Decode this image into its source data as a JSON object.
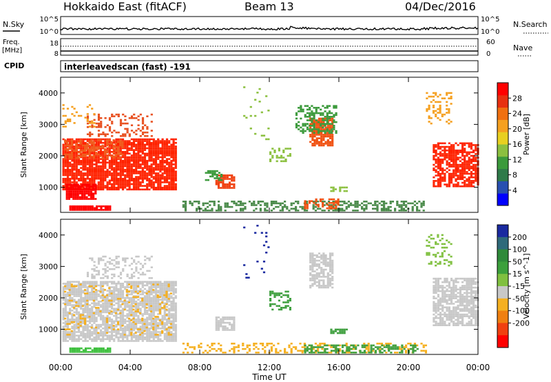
{
  "header": {
    "station": "Hokkaido East (fitACF)",
    "beam": "Beam 13",
    "date": "04/Dec/2016"
  },
  "top_panels": {
    "nsky_label": "N.Sky",
    "nsky_ticks": [
      "10^5",
      "10^0"
    ],
    "nsearch_label": "N.Search",
    "nsearch_ticks": [
      "10^5",
      "10^0"
    ],
    "freq_label_1": "Freq.",
    "freq_label_2": "[MHz]",
    "freq_ticks": [
      "18",
      "8"
    ],
    "nave_label": "Nave",
    "nave_ticks": [
      "60",
      "0"
    ],
    "cpid_label": "CPID",
    "cpid_text": "interleavedscan (fast) -191"
  },
  "chart_data": [
    {
      "type": "heatmap",
      "name": "power",
      "ylabel": "Slant Range [km]",
      "ylim": [
        200,
        4500
      ],
      "yticks": [
        "1000",
        "2000",
        "3000",
        "4000"
      ],
      "xlim": [
        "00:00",
        "24:00"
      ],
      "colorbar": {
        "label": "Power [dB]",
        "ticks": [
          "4",
          "8",
          "12",
          "16",
          "20",
          "24",
          "28"
        ],
        "colors": [
          "#0000ff",
          "#2850b0",
          "#2f7a4a",
          "#3c9a3c",
          "#8cc040",
          "#e8d020",
          "#f5a020",
          "#f07010",
          "#e83010",
          "#ff0000"
        ]
      },
      "regions": [
        {
          "t0": 0.1,
          "t1": 6.6,
          "r0": 900,
          "r1": 2500,
          "color": "#ff2200",
          "density": 0.85
        },
        {
          "t0": 0.3,
          "t1": 2.0,
          "r0": 600,
          "r1": 1100,
          "color": "#ff0000",
          "density": 0.9
        },
        {
          "t0": 0.2,
          "t1": 3.5,
          "r0": 1900,
          "r1": 2500,
          "color": "#f06020",
          "density": 0.5
        },
        {
          "t0": 1.5,
          "t1": 5.2,
          "r0": 2600,
          "r1": 3300,
          "color": "#e85020",
          "density": 0.3
        },
        {
          "t0": 0.1,
          "t1": 2.0,
          "r0": 2900,
          "r1": 3600,
          "color": "#f5a020",
          "density": 0.2
        },
        {
          "t0": 0.5,
          "t1": 2.8,
          "r0": 250,
          "r1": 380,
          "color": "#ff0000",
          "density": 0.95
        },
        {
          "t0": 8.9,
          "t1": 10.0,
          "r0": 950,
          "r1": 1400,
          "color": "#f04010",
          "density": 0.8
        },
        {
          "t0": 8.3,
          "t1": 9.2,
          "r0": 1200,
          "r1": 1500,
          "color": "#3c9a3c",
          "density": 0.5
        },
        {
          "t0": 12.0,
          "t1": 13.2,
          "r0": 1800,
          "r1": 2200,
          "color": "#8cc040",
          "density": 0.5
        },
        {
          "t0": 14.3,
          "t1": 15.6,
          "r0": 2300,
          "r1": 3200,
          "color": "#f05010",
          "density": 0.75
        },
        {
          "t0": 13.5,
          "t1": 15.8,
          "r0": 2700,
          "r1": 3600,
          "color": "#3c9a3c",
          "density": 0.45
        },
        {
          "t0": 15.5,
          "t1": 16.5,
          "r0": 850,
          "r1": 1000,
          "color": "#8cc040",
          "density": 0.6
        },
        {
          "t0": 7.0,
          "t1": 21.0,
          "r0": 230,
          "r1": 520,
          "color": "#4a8a4a",
          "density": 0.45
        },
        {
          "t0": 14.0,
          "t1": 16.0,
          "r0": 300,
          "r1": 600,
          "color": "#f05010",
          "density": 0.5
        },
        {
          "t0": 21.4,
          "t1": 24.0,
          "r0": 1000,
          "r1": 2400,
          "color": "#ff2200",
          "density": 0.7
        },
        {
          "t0": 21.0,
          "t1": 22.5,
          "r0": 3000,
          "r1": 4000,
          "color": "#f5a020",
          "density": 0.3
        },
        {
          "t0": 10.5,
          "t1": 12.0,
          "r0": 2500,
          "r1": 4300,
          "color": "#8cc040",
          "density": 0.04
        }
      ]
    },
    {
      "type": "heatmap",
      "name": "velocity",
      "ylabel": "Slant Range [km]",
      "ylim": [
        200,
        4500
      ],
      "yticks": [
        "1000",
        "2000",
        "3000",
        "4000"
      ],
      "xlim": [
        "00:00",
        "24:00"
      ],
      "xticks": [
        "00:00",
        "04:00",
        "08:00",
        "12:00",
        "16:00",
        "20:00",
        "00:00"
      ],
      "xlabel": "Time UT",
      "colorbar": {
        "label": "Velocity [m s^-1]",
        "ticks": [
          "200",
          "100",
          "50",
          "15",
          "-15",
          "-50",
          "-100",
          "-200"
        ],
        "colors": [
          "#1a2aa0",
          "#2f6a7a",
          "#2f8a3a",
          "#3ca03c",
          "#80c040",
          "#c8c8c8",
          "#f5b020",
          "#f08010",
          "#f04010",
          "#ff0000"
        ]
      },
      "regions": [
        {
          "t0": 0.1,
          "t1": 6.6,
          "r0": 600,
          "r1": 2500,
          "color": "#c8c8c8",
          "density": 0.8
        },
        {
          "t0": 0.2,
          "t1": 6.4,
          "r0": 800,
          "r1": 2400,
          "color": "#f5b020",
          "density": 0.15
        },
        {
          "t0": 1.5,
          "t1": 5.2,
          "r0": 2600,
          "r1": 3300,
          "color": "#c8c8c8",
          "density": 0.3
        },
        {
          "t0": 0.5,
          "t1": 2.8,
          "r0": 250,
          "r1": 380,
          "color": "#40c040",
          "density": 0.95
        },
        {
          "t0": 8.9,
          "t1": 10.0,
          "r0": 950,
          "r1": 1400,
          "color": "#c8c8c8",
          "density": 0.8
        },
        {
          "t0": 12.0,
          "t1": 13.2,
          "r0": 1600,
          "r1": 2200,
          "color": "#40a040",
          "density": 0.5
        },
        {
          "t0": 14.3,
          "t1": 15.6,
          "r0": 2300,
          "r1": 3400,
          "color": "#c8c8c8",
          "density": 0.7
        },
        {
          "t0": 15.5,
          "t1": 16.5,
          "r0": 850,
          "r1": 1000,
          "color": "#40a040",
          "density": 0.6
        },
        {
          "t0": 7.0,
          "t1": 21.0,
          "r0": 230,
          "r1": 520,
          "color": "#f5b020",
          "density": 0.35
        },
        {
          "t0": 14.0,
          "t1": 20.5,
          "r0": 230,
          "r1": 480,
          "color": "#40a040",
          "density": 0.45
        },
        {
          "t0": 21.4,
          "t1": 24.0,
          "r0": 1100,
          "r1": 2600,
          "color": "#c8c8c8",
          "density": 0.75
        },
        {
          "t0": 21.0,
          "t1": 22.5,
          "r0": 3000,
          "r1": 4000,
          "color": "#80c040",
          "density": 0.25
        },
        {
          "t0": 10.5,
          "t1": 12.0,
          "r0": 2500,
          "r1": 4300,
          "color": "#1a2aa0",
          "density": 0.04
        }
      ]
    }
  ]
}
